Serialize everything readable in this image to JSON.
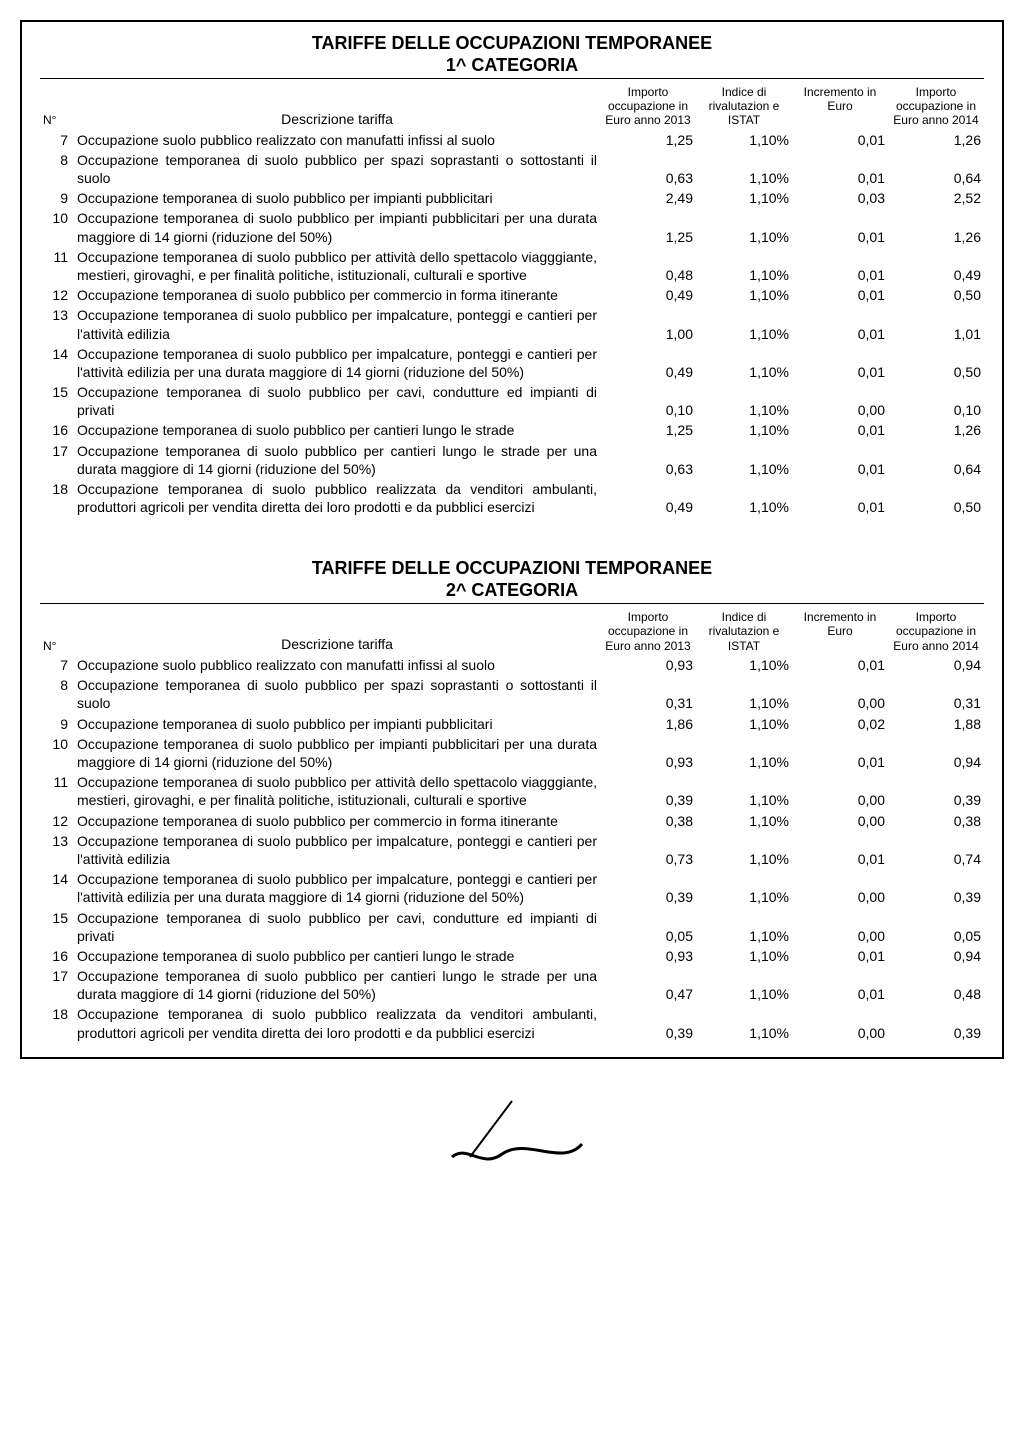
{
  "doc": {
    "main_title": "TARIFFE DELLE OCCUPAZIONI TEMPORANEE",
    "header": {
      "n": "N°",
      "desc": "Descrizione tariffa",
      "c1": "Importo occupazione in Euro anno 2013",
      "c2": "Indice di rivalutazion e ISTAT",
      "c3": "Incremento in Euro",
      "c4": "Importo occupazione in Euro anno 2014"
    },
    "sections": [
      {
        "subtitle": "1^ CATEGORIA",
        "rows": [
          {
            "n": "7",
            "d": "Occupazione suolo pubblico realizzato con manufatti infissi al suolo",
            "v": [
              "1,25",
              "1,10%",
              "0,01",
              "1,26"
            ]
          },
          {
            "n": "8",
            "d": "Occupazione temporanea di suolo pubblico per spazi soprastanti o sottostanti il suolo",
            "v": [
              "0,63",
              "1,10%",
              "0,01",
              "0,64"
            ]
          },
          {
            "n": "9",
            "d": "Occupazione temporanea di suolo pubblico per impianti pubblicitari",
            "v": [
              "2,49",
              "1,10%",
              "0,03",
              "2,52"
            ]
          },
          {
            "n": "10",
            "d": "Occupazione temporanea di suolo pubblico per impianti pubblicitari per una durata maggiore di 14 giorni (riduzione del 50%)",
            "v": [
              "1,25",
              "1,10%",
              "0,01",
              "1,26"
            ]
          },
          {
            "n": "11",
            "d": "Occupazione temporanea di suolo pubblico per attività dello spettacolo viagggiante, mestieri, girovaghi, e per finalità politiche, istituzionali, culturali e sportive",
            "v": [
              "0,48",
              "1,10%",
              "0,01",
              "0,49"
            ]
          },
          {
            "n": "12",
            "d": "Occupazione temporanea di suolo pubblico per commercio in forma itinerante",
            "v": [
              "0,49",
              "1,10%",
              "0,01",
              "0,50"
            ]
          },
          {
            "n": "13",
            "d": "Occupazione temporanea di suolo pubblico per impalcature, ponteggi e cantieri per l'attività edilizia",
            "v": [
              "1,00",
              "1,10%",
              "0,01",
              "1,01"
            ]
          },
          {
            "n": "14",
            "d": "Occupazione temporanea di suolo pubblico per impalcature, ponteggi e cantieri per l'attività edilizia per una durata maggiore di 14 giorni (riduzione del 50%)",
            "v": [
              "0,49",
              "1,10%",
              "0,01",
              "0,50"
            ]
          },
          {
            "n": "15",
            "d": "Occupazione temporanea di suolo pubblico per cavi, condutture ed impianti di privati",
            "v": [
              "0,10",
              "1,10%",
              "0,00",
              "0,10"
            ]
          },
          {
            "n": "16",
            "d": "Occupazione temporanea di suolo pubblico per cantieri lungo le strade",
            "v": [
              "1,25",
              "1,10%",
              "0,01",
              "1,26"
            ]
          },
          {
            "n": "17",
            "d": "Occupazione temporanea di suolo pubblico per cantieri lungo le strade per una durata maggiore di 14 giorni (riduzione del 50%)",
            "v": [
              "0,63",
              "1,10%",
              "0,01",
              "0,64"
            ]
          },
          {
            "n": "18",
            "d": "Occupazione temporanea di suolo pubblico realizzata da venditori ambulanti, produttori agricoli per vendita diretta dei loro prodotti e da pubblici esercizi",
            "v": [
              "0,49",
              "1,10%",
              "0,01",
              "0,50"
            ]
          }
        ]
      },
      {
        "subtitle": "2^ CATEGORIA",
        "rows": [
          {
            "n": "7",
            "d": "Occupazione suolo pubblico realizzato con manufatti infissi al suolo",
            "v": [
              "0,93",
              "1,10%",
              "0,01",
              "0,94"
            ]
          },
          {
            "n": "8",
            "d": "Occupazione temporanea di suolo pubblico per spazi soprastanti o sottostanti il suolo",
            "v": [
              "0,31",
              "1,10%",
              "0,00",
              "0,31"
            ]
          },
          {
            "n": "9",
            "d": "Occupazione temporanea di suolo pubblico per impianti pubblicitari",
            "v": [
              "1,86",
              "1,10%",
              "0,02",
              "1,88"
            ]
          },
          {
            "n": "10",
            "d": "Occupazione temporanea di suolo pubblico per impianti pubblicitari per una durata maggiore di 14 giorni (riduzione del 50%)",
            "v": [
              "0,93",
              "1,10%",
              "0,01",
              "0,94"
            ]
          },
          {
            "n": "11",
            "d": "Occupazione temporanea di suolo pubblico per attività dello spettacolo viagggiante, mestieri, girovaghi, e per finalità politiche, istituzionali, culturali e sportive",
            "v": [
              "0,39",
              "1,10%",
              "0,00",
              "0,39"
            ]
          },
          {
            "n": "12",
            "d": "Occupazione temporanea di suolo pubblico per commercio in forma itinerante",
            "v": [
              "0,38",
              "1,10%",
              "0,00",
              "0,38"
            ]
          },
          {
            "n": "13",
            "d": "Occupazione temporanea di suolo pubblico per impalcature, ponteggi e cantieri per l'attività edilizia",
            "v": [
              "0,73",
              "1,10%",
              "0,01",
              "0,74"
            ]
          },
          {
            "n": "14",
            "d": "Occupazione temporanea di suolo pubblico per impalcature, ponteggi e cantieri per l'attività edilizia per una durata maggiore di 14 giorni (riduzione del 50%)",
            "v": [
              "0,39",
              "1,10%",
              "0,00",
              "0,39"
            ]
          },
          {
            "n": "15",
            "d": "Occupazione temporanea di suolo pubblico per cavi, condutture ed impianti di privati",
            "v": [
              "0,05",
              "1,10%",
              "0,00",
              "0,05"
            ]
          },
          {
            "n": "16",
            "d": "Occupazione temporanea di suolo pubblico per cantieri lungo le strade",
            "v": [
              "0,93",
              "1,10%",
              "0,01",
              "0,94"
            ]
          },
          {
            "n": "17",
            "d": "Occupazione temporanea di suolo pubblico per cantieri lungo le strade per una durata maggiore di 14 giorni (riduzione del 50%)",
            "v": [
              "0,47",
              "1,10%",
              "0,01",
              "0,48"
            ]
          },
          {
            "n": "18",
            "d": "Occupazione temporanea di suolo pubblico realizzata da venditori ambulanti, produttori agricoli per vendita diretta dei loro prodotti e da pubblici esercizi",
            "v": [
              "0,39",
              "1,10%",
              "0,00",
              "0,39"
            ]
          }
        ]
      }
    ]
  }
}
